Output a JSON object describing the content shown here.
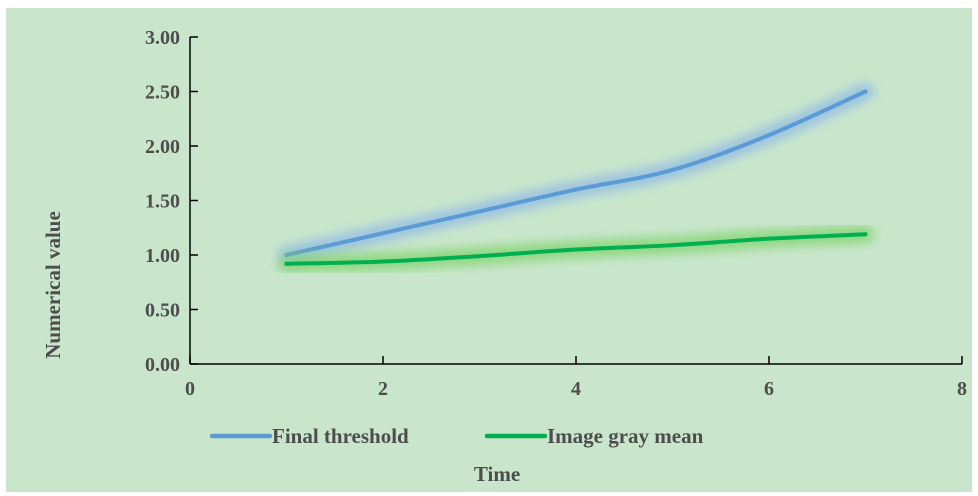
{
  "chart_data": {
    "type": "line",
    "title": "",
    "xlabel": "Time",
    "ylabel": "Numerical value",
    "xlim": [
      0,
      8
    ],
    "ylim": [
      0,
      3
    ],
    "x_ticks": [
      "0",
      "2",
      "4",
      "6",
      "8"
    ],
    "y_ticks": [
      "0.00",
      "0.50",
      "1.00",
      "1.50",
      "2.00",
      "2.50",
      "3.00"
    ],
    "grid": false,
    "legend_position": "bottom",
    "series": [
      {
        "name": "Final threshold",
        "color": "#5b9bd5",
        "x": [
          1,
          2,
          3,
          4,
          5,
          6,
          7
        ],
        "values": [
          1.0,
          1.2,
          1.4,
          1.6,
          1.78,
          2.1,
          2.5
        ]
      },
      {
        "name": "Image gray mean",
        "color": "#00b050",
        "x": [
          1,
          2,
          3,
          4,
          5,
          6,
          7
        ],
        "values": [
          0.92,
          0.94,
          0.99,
          1.05,
          1.09,
          1.15,
          1.19
        ]
      }
    ]
  }
}
